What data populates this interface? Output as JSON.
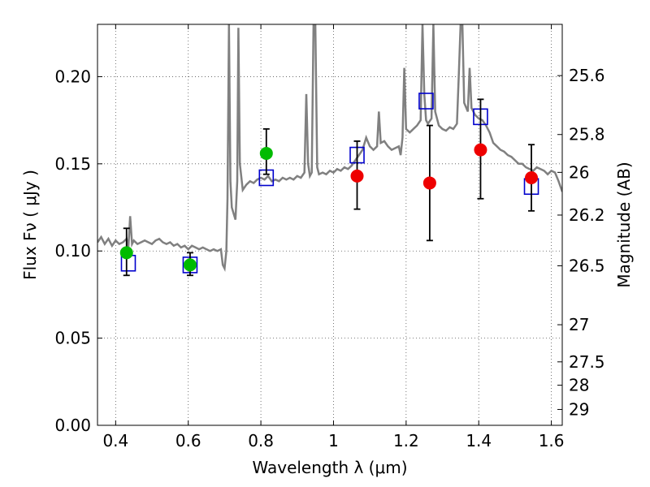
{
  "chart_data": {
    "type": "scatter",
    "xlabel": "Wavelength  λ (μm)",
    "ylabel": "Flux  Fν  ( μJy )",
    "ylabel_right": "Magnitude (AB)",
    "xlim": [
      0.35,
      1.63
    ],
    "ylim": [
      0.0,
      0.23
    ],
    "grid": true,
    "grid_style": "dotted",
    "x_ticks": [
      0.4,
      0.6,
      0.8,
      1.0,
      1.2,
      1.4,
      1.6
    ],
    "x_tick_labels": [
      "0.4",
      "0.6",
      "0.8",
      "1",
      "1.2",
      "1.4",
      "1.6"
    ],
    "y_ticks": [
      0.0,
      0.05,
      0.1,
      0.15,
      0.2
    ],
    "y_tick_labels": [
      "0.00",
      "0.05",
      "0.10",
      "0.15",
      "0.20"
    ],
    "right_ticks": [
      {
        "label": "25.6",
        "flux": 0.2006
      },
      {
        "label": "25.8",
        "flux": 0.1668
      },
      {
        "label": "26",
        "flux": 0.1451
      },
      {
        "label": "26.2",
        "flux": 0.1206
      },
      {
        "label": "26.5",
        "flux": 0.0915
      },
      {
        "label": "27",
        "flux": 0.0577
      },
      {
        "label": "27.5",
        "flux": 0.0364
      },
      {
        "label": "28",
        "flux": 0.023
      },
      {
        "label": "29",
        "flux": 0.0091
      }
    ],
    "colors": {
      "sed": "#808080",
      "model_box": "#0000cc",
      "green_points": "#00bb00",
      "red_points": "#ee0000",
      "errorbar": "#000000",
      "grid": "#555555"
    },
    "series": [
      {
        "kind": "line",
        "points": [
          [
            0.35,
            0.105
          ],
          [
            0.36,
            0.108
          ],
          [
            0.37,
            0.104
          ],
          [
            0.38,
            0.107
          ],
          [
            0.39,
            0.103
          ],
          [
            0.4,
            0.106
          ],
          [
            0.41,
            0.104
          ],
          [
            0.42,
            0.105
          ],
          [
            0.43,
            0.107
          ],
          [
            0.435,
            0.102
          ],
          [
            0.44,
            0.12
          ],
          [
            0.445,
            0.104
          ],
          [
            0.45,
            0.106
          ],
          [
            0.46,
            0.104
          ],
          [
            0.47,
            0.105
          ],
          [
            0.48,
            0.106
          ],
          [
            0.49,
            0.105
          ],
          [
            0.5,
            0.104
          ],
          [
            0.51,
            0.106
          ],
          [
            0.52,
            0.107
          ],
          [
            0.53,
            0.105
          ],
          [
            0.54,
            0.104
          ],
          [
            0.55,
            0.105
          ],
          [
            0.56,
            0.103
          ],
          [
            0.57,
            0.104
          ],
          [
            0.58,
            0.102
          ],
          [
            0.59,
            0.103
          ],
          [
            0.6,
            0.101
          ],
          [
            0.61,
            0.103
          ],
          [
            0.62,
            0.102
          ],
          [
            0.63,
            0.101
          ],
          [
            0.64,
            0.102
          ],
          [
            0.65,
            0.101
          ],
          [
            0.66,
            0.1
          ],
          [
            0.67,
            0.101
          ],
          [
            0.68,
            0.1
          ],
          [
            0.69,
            0.101
          ],
          [
            0.695,
            0.092
          ],
          [
            0.7,
            0.09
          ],
          [
            0.705,
            0.1
          ],
          [
            0.708,
            0.13
          ],
          [
            0.712,
            0.23
          ],
          [
            0.716,
            0.14
          ],
          [
            0.72,
            0.125
          ],
          [
            0.73,
            0.118
          ],
          [
            0.735,
            0.14
          ],
          [
            0.738,
            0.228
          ],
          [
            0.742,
            0.15
          ],
          [
            0.75,
            0.135
          ],
          [
            0.76,
            0.138
          ],
          [
            0.77,
            0.14
          ],
          [
            0.78,
            0.139
          ],
          [
            0.79,
            0.141
          ],
          [
            0.8,
            0.142
          ],
          [
            0.81,
            0.141
          ],
          [
            0.82,
            0.143
          ],
          [
            0.83,
            0.14
          ],
          [
            0.84,
            0.141
          ],
          [
            0.85,
            0.14
          ],
          [
            0.86,
            0.142
          ],
          [
            0.87,
            0.141
          ],
          [
            0.88,
            0.142
          ],
          [
            0.89,
            0.141
          ],
          [
            0.9,
            0.143
          ],
          [
            0.91,
            0.142
          ],
          [
            0.92,
            0.145
          ],
          [
            0.925,
            0.19
          ],
          [
            0.93,
            0.15
          ],
          [
            0.935,
            0.143
          ],
          [
            0.94,
            0.145
          ],
          [
            0.945,
            0.23
          ],
          [
            0.95,
            0.23
          ],
          [
            0.955,
            0.148
          ],
          [
            0.96,
            0.144
          ],
          [
            0.97,
            0.145
          ],
          [
            0.98,
            0.144
          ],
          [
            0.99,
            0.146
          ],
          [
            1.0,
            0.145
          ],
          [
            1.01,
            0.147
          ],
          [
            1.02,
            0.146
          ],
          [
            1.03,
            0.148
          ],
          [
            1.04,
            0.147
          ],
          [
            1.05,
            0.149
          ],
          [
            1.06,
            0.152
          ],
          [
            1.07,
            0.155
          ],
          [
            1.08,
            0.158
          ],
          [
            1.09,
            0.165
          ],
          [
            1.1,
            0.16
          ],
          [
            1.11,
            0.158
          ],
          [
            1.12,
            0.16
          ],
          [
            1.125,
            0.18
          ],
          [
            1.13,
            0.162
          ],
          [
            1.14,
            0.163
          ],
          [
            1.15,
            0.16
          ],
          [
            1.16,
            0.158
          ],
          [
            1.17,
            0.159
          ],
          [
            1.18,
            0.16
          ],
          [
            1.185,
            0.155
          ],
          [
            1.19,
            0.165
          ],
          [
            1.195,
            0.205
          ],
          [
            1.2,
            0.17
          ],
          [
            1.21,
            0.168
          ],
          [
            1.22,
            0.17
          ],
          [
            1.23,
            0.172
          ],
          [
            1.24,
            0.175
          ],
          [
            1.245,
            0.23
          ],
          [
            1.25,
            0.19
          ],
          [
            1.255,
            0.175
          ],
          [
            1.26,
            0.173
          ],
          [
            1.27,
            0.176
          ],
          [
            1.275,
            0.23
          ],
          [
            1.28,
            0.18
          ],
          [
            1.29,
            0.172
          ],
          [
            1.3,
            0.17
          ],
          [
            1.31,
            0.169
          ],
          [
            1.32,
            0.171
          ],
          [
            1.33,
            0.17
          ],
          [
            1.34,
            0.173
          ],
          [
            1.345,
            0.2
          ],
          [
            1.35,
            0.23
          ],
          [
            1.355,
            0.23
          ],
          [
            1.36,
            0.185
          ],
          [
            1.37,
            0.18
          ],
          [
            1.375,
            0.205
          ],
          [
            1.38,
            0.182
          ],
          [
            1.39,
            0.178
          ],
          [
            1.4,
            0.176
          ],
          [
            1.41,
            0.175
          ],
          [
            1.42,
            0.172
          ],
          [
            1.43,
            0.168
          ],
          [
            1.44,
            0.162
          ],
          [
            1.45,
            0.16
          ],
          [
            1.46,
            0.158
          ],
          [
            1.47,
            0.157
          ],
          [
            1.48,
            0.155
          ],
          [
            1.49,
            0.154
          ],
          [
            1.5,
            0.152
          ],
          [
            1.51,
            0.15
          ],
          [
            1.52,
            0.15
          ],
          [
            1.53,
            0.148
          ],
          [
            1.54,
            0.147
          ],
          [
            1.55,
            0.146
          ],
          [
            1.56,
            0.148
          ],
          [
            1.57,
            0.147
          ],
          [
            1.58,
            0.146
          ],
          [
            1.59,
            0.144
          ],
          [
            1.6,
            0.146
          ],
          [
            1.61,
            0.145
          ],
          [
            1.62,
            0.14
          ],
          [
            1.63,
            0.134
          ]
        ]
      },
      {
        "kind": "box",
        "points": [
          [
            0.435,
            0.093
          ],
          [
            0.605,
            0.092
          ],
          [
            0.815,
            0.142
          ],
          [
            1.065,
            0.155
          ],
          [
            1.255,
            0.186
          ],
          [
            1.405,
            0.177
          ],
          [
            1.545,
            0.137
          ]
        ]
      },
      {
        "kind": "dot-green",
        "points": [
          {
            "x": 0.43,
            "y": 0.099,
            "err_lo": 0.086,
            "err_hi": 0.113
          },
          {
            "x": 0.605,
            "y": 0.092,
            "err_lo": 0.086,
            "err_hi": 0.099
          },
          {
            "x": 0.815,
            "y": 0.156,
            "err_lo": 0.144,
            "err_hi": 0.17
          }
        ]
      },
      {
        "kind": "dot-red",
        "points": [
          {
            "x": 1.065,
            "y": 0.143,
            "err_lo": 0.124,
            "err_hi": 0.163
          },
          {
            "x": 1.265,
            "y": 0.139,
            "err_lo": 0.106,
            "err_hi": 0.172
          },
          {
            "x": 1.405,
            "y": 0.158,
            "err_lo": 0.13,
            "err_hi": 0.187
          },
          {
            "x": 1.545,
            "y": 0.142,
            "err_lo": 0.123,
            "err_hi": 0.161
          }
        ]
      }
    ]
  }
}
